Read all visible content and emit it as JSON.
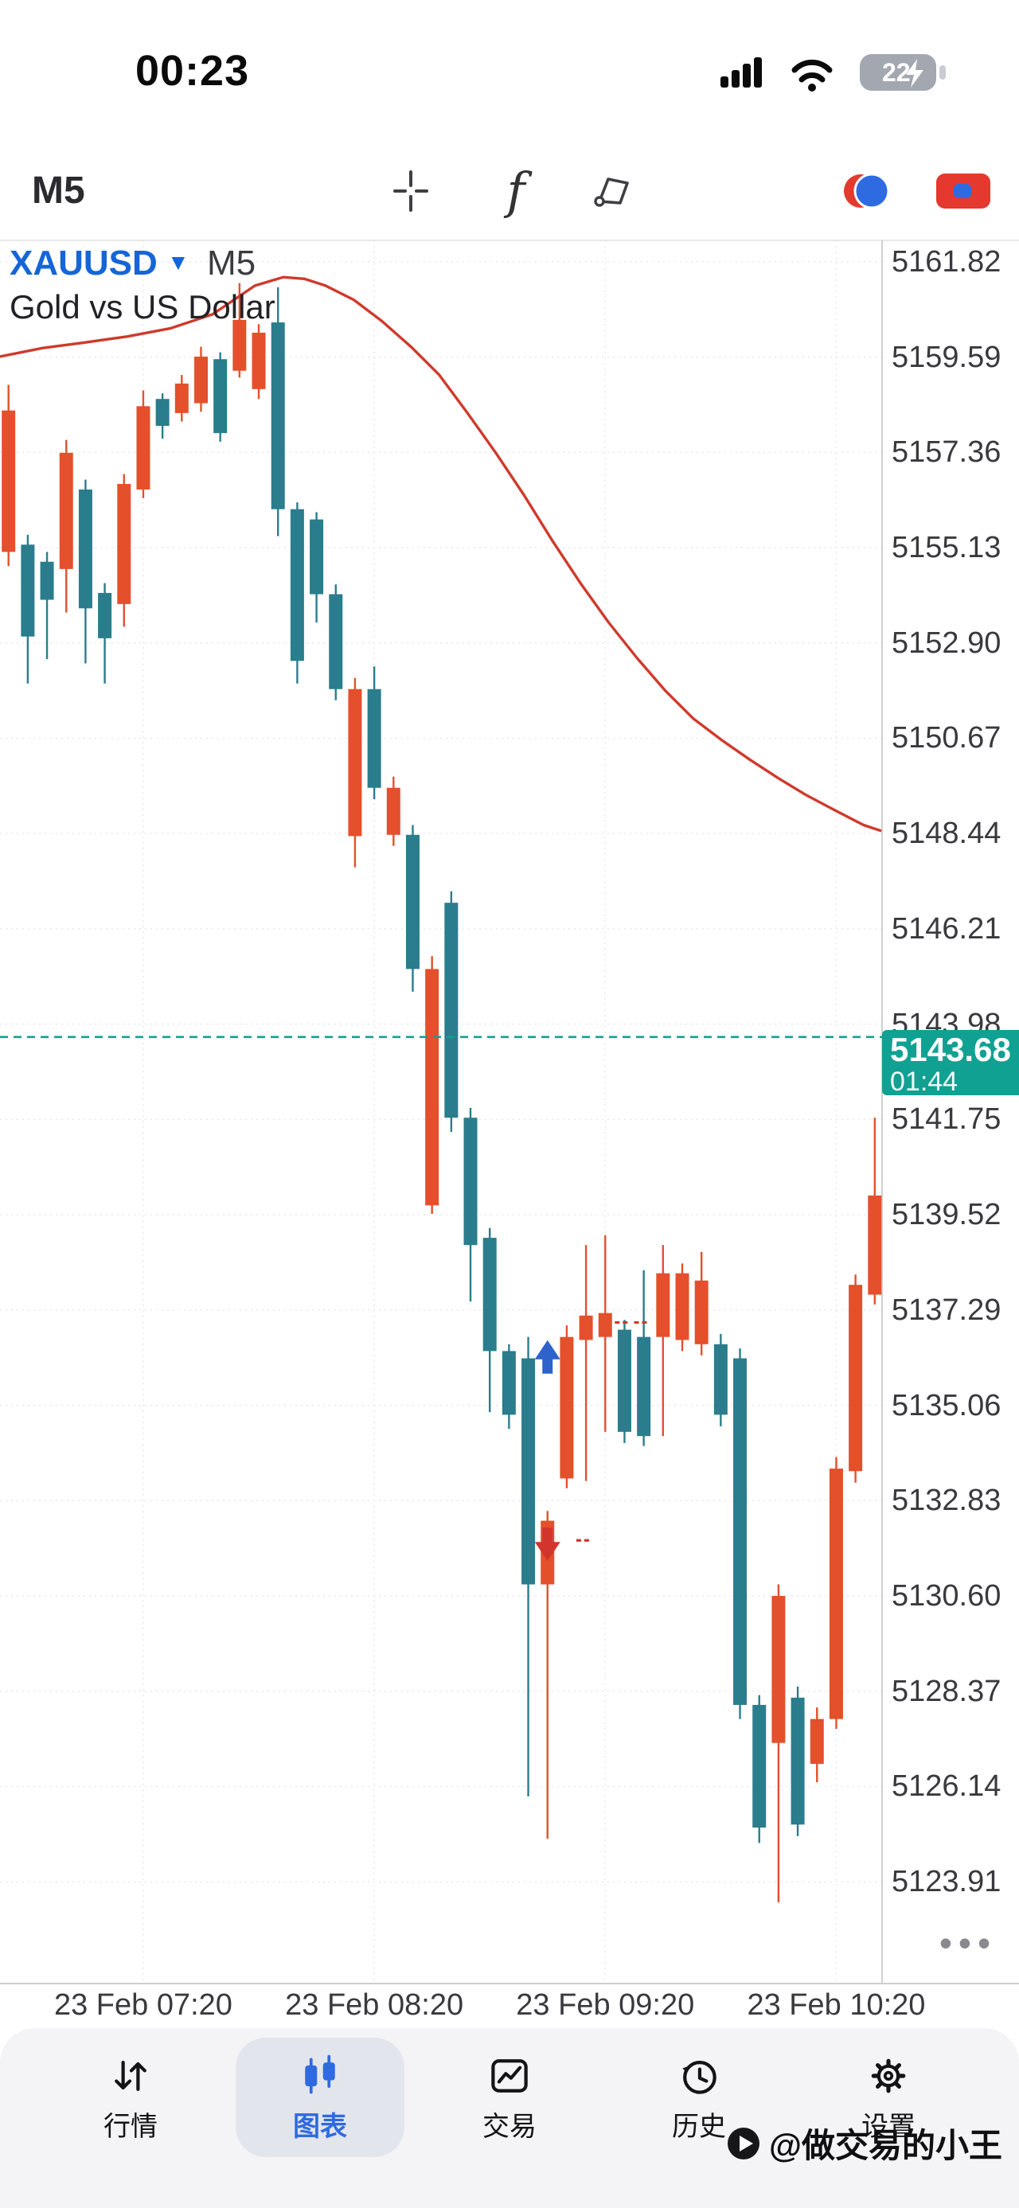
{
  "status_bar": {
    "time": "00:23",
    "battery_level": "22"
  },
  "toolbar": {
    "timeframe": "M5"
  },
  "chart_header": {
    "symbol": "XAUUSD",
    "timeframe": "M5",
    "description": "Gold vs US Dollar"
  },
  "more_indicator": "•••",
  "chart_data": {
    "type": "candlestick",
    "symbol": "XAUUSD",
    "timeframe": "M5",
    "title": "Gold vs US Dollar",
    "colors": {
      "up": "#e4502c",
      "down": "#2a7d8c",
      "accent": "#11a193",
      "ma": "#cf3a2c",
      "grid": "#e9e9e9"
    },
    "y_axis": {
      "min": 5121.53,
      "max": 5162.32,
      "ticks": [
        5161.82,
        5159.59,
        5157.36,
        5155.13,
        5152.9,
        5150.67,
        5148.44,
        5146.21,
        5143.98,
        5141.75,
        5139.52,
        5137.29,
        5135.06,
        5132.83,
        5130.6,
        5128.37,
        5126.14,
        5123.91
      ]
    },
    "x_axis": {
      "labels": [
        {
          "text": "23 Feb 07:20",
          "index": 7
        },
        {
          "text": "23 Feb 08:20",
          "index": 19
        },
        {
          "text": "23 Feb 09:20",
          "index": 31
        },
        {
          "text": "23 Feb 10:20",
          "index": 43
        }
      ]
    },
    "current_price": {
      "value": "5143.68",
      "countdown": "01:44"
    },
    "candles": [
      {
        "t": "06:45",
        "o": 5155.03,
        "h": 5158.94,
        "l": 5154.7,
        "c": 5158.34
      },
      {
        "t": "06:50",
        "o": 5155.2,
        "h": 5155.43,
        "l": 5151.95,
        "c": 5153.05
      },
      {
        "t": "06:55",
        "o": 5154.8,
        "h": 5155.03,
        "l": 5152.52,
        "c": 5153.91
      },
      {
        "t": "07:00",
        "o": 5154.63,
        "h": 5157.65,
        "l": 5153.61,
        "c": 5157.35
      },
      {
        "t": "07:05",
        "o": 5156.49,
        "h": 5156.72,
        "l": 5152.42,
        "c": 5153.71
      },
      {
        "t": "07:10",
        "o": 5154.07,
        "h": 5154.3,
        "l": 5151.95,
        "c": 5153.01
      },
      {
        "t": "07:15",
        "o": 5153.81,
        "h": 5156.85,
        "l": 5153.28,
        "c": 5156.62
      },
      {
        "t": "07:20",
        "o": 5156.49,
        "h": 5158.81,
        "l": 5156.29,
        "c": 5158.44
      },
      {
        "t": "07:25",
        "o": 5158.61,
        "h": 5158.74,
        "l": 5157.68,
        "c": 5157.98
      },
      {
        "t": "07:30",
        "o": 5158.28,
        "h": 5159.17,
        "l": 5158.08,
        "c": 5158.97
      },
      {
        "t": "07:35",
        "o": 5158.51,
        "h": 5159.83,
        "l": 5158.31,
        "c": 5159.6
      },
      {
        "t": "07:40",
        "o": 5159.54,
        "h": 5159.7,
        "l": 5157.61,
        "c": 5157.81
      },
      {
        "t": "07:45",
        "o": 5159.27,
        "h": 5161.32,
        "l": 5159.11,
        "c": 5160.46
      },
      {
        "t": "07:50",
        "o": 5158.84,
        "h": 5160.36,
        "l": 5158.61,
        "c": 5160.16
      },
      {
        "t": "07:55",
        "o": 5160.4,
        "h": 5161.22,
        "l": 5155.4,
        "c": 5156.03
      },
      {
        "t": "08:00",
        "o": 5156.03,
        "h": 5156.19,
        "l": 5151.95,
        "c": 5152.48
      },
      {
        "t": "08:05",
        "o": 5155.79,
        "h": 5155.96,
        "l": 5153.38,
        "c": 5154.04
      },
      {
        "t": "08:10",
        "o": 5154.04,
        "h": 5154.27,
        "l": 5151.56,
        "c": 5151.82
      },
      {
        "t": "08:15",
        "o": 5148.38,
        "h": 5152.08,
        "l": 5147.65,
        "c": 5151.82
      },
      {
        "t": "08:20",
        "o": 5151.82,
        "h": 5152.35,
        "l": 5149.24,
        "c": 5149.51
      },
      {
        "t": "08:25",
        "o": 5148.41,
        "h": 5149.77,
        "l": 5148.15,
        "c": 5149.51
      },
      {
        "t": "08:30",
        "o": 5148.41,
        "h": 5148.64,
        "l": 5144.74,
        "c": 5145.27
      },
      {
        "t": "08:35",
        "o": 5139.74,
        "h": 5145.57,
        "l": 5139.54,
        "c": 5145.27
      },
      {
        "t": "08:40",
        "o": 5146.82,
        "h": 5147.09,
        "l": 5141.46,
        "c": 5141.79
      },
      {
        "t": "08:45",
        "o": 5141.79,
        "h": 5142.02,
        "l": 5137.49,
        "c": 5138.81
      },
      {
        "t": "08:50",
        "o": 5138.98,
        "h": 5139.21,
        "l": 5134.9,
        "c": 5136.33
      },
      {
        "t": "08:55",
        "o": 5136.33,
        "h": 5136.49,
        "l": 5134.51,
        "c": 5134.84
      },
      {
        "t": "09:00",
        "o": 5136.16,
        "h": 5136.66,
        "l": 5125.91,
        "c": 5130.87
      },
      {
        "t": "09:05",
        "o": 5130.87,
        "h": 5132.59,
        "l": 5124.92,
        "c": 5132.36
      },
      {
        "t": "09:10",
        "o": 5133.35,
        "h": 5136.93,
        "l": 5133.12,
        "c": 5136.66
      },
      {
        "t": "09:15",
        "o": 5136.59,
        "h": 5138.81,
        "l": 5133.29,
        "c": 5137.16
      },
      {
        "t": "09:20",
        "o": 5136.66,
        "h": 5139.04,
        "l": 5134.44,
        "c": 5137.22
      },
      {
        "t": "09:25",
        "o": 5136.83,
        "h": 5137.06,
        "l": 5134.18,
        "c": 5134.44
      },
      {
        "t": "09:30",
        "o": 5136.66,
        "h": 5138.22,
        "l": 5134.11,
        "c": 5134.34
      },
      {
        "t": "09:35",
        "o": 5136.66,
        "h": 5138.81,
        "l": 5134.34,
        "c": 5138.15
      },
      {
        "t": "09:40",
        "o": 5136.59,
        "h": 5138.38,
        "l": 5136.33,
        "c": 5138.15
      },
      {
        "t": "09:45",
        "o": 5136.49,
        "h": 5138.65,
        "l": 5136.23,
        "c": 5137.98
      },
      {
        "t": "09:50",
        "o": 5136.49,
        "h": 5136.73,
        "l": 5134.57,
        "c": 5134.84
      },
      {
        "t": "09:55",
        "o": 5136.16,
        "h": 5136.39,
        "l": 5127.72,
        "c": 5128.05
      },
      {
        "t": "10:00",
        "o": 5128.05,
        "h": 5128.28,
        "l": 5124.82,
        "c": 5125.18
      },
      {
        "t": "10:05",
        "o": 5127.16,
        "h": 5130.87,
        "l": 5123.43,
        "c": 5130.6
      },
      {
        "t": "10:10",
        "o": 5128.22,
        "h": 5128.48,
        "l": 5124.98,
        "c": 5125.25
      },
      {
        "t": "10:15",
        "o": 5126.67,
        "h": 5127.99,
        "l": 5126.24,
        "c": 5127.72
      },
      {
        "t": "10:20",
        "o": 5127.72,
        "h": 5133.85,
        "l": 5127.49,
        "c": 5133.58
      },
      {
        "t": "10:25",
        "o": 5133.52,
        "h": 5138.12,
        "l": 5133.25,
        "c": 5137.88
      },
      {
        "t": "10:30",
        "o": 5137.65,
        "h": 5141.79,
        "l": 5137.42,
        "c": 5139.97
      }
    ],
    "ma_line": {
      "color": "#cf3a2c",
      "points": [
        {
          "fx": 0.0,
          "p": 5159.6
        },
        {
          "fx": 0.048,
          "p": 5159.8
        },
        {
          "fx": 0.096,
          "p": 5159.93
        },
        {
          "fx": 0.144,
          "p": 5160.07
        },
        {
          "fx": 0.193,
          "p": 5160.26
        },
        {
          "fx": 0.241,
          "p": 5160.59
        },
        {
          "fx": 0.289,
          "p": 5161.26
        },
        {
          "fx": 0.321,
          "p": 5161.46
        },
        {
          "fx": 0.345,
          "p": 5161.42
        },
        {
          "fx": 0.369,
          "p": 5161.26
        },
        {
          "fx": 0.401,
          "p": 5160.93
        },
        {
          "fx": 0.433,
          "p": 5160.43
        },
        {
          "fx": 0.466,
          "p": 5159.83
        },
        {
          "fx": 0.498,
          "p": 5159.17
        },
        {
          "fx": 0.53,
          "p": 5158.28
        },
        {
          "fx": 0.562,
          "p": 5157.35
        },
        {
          "fx": 0.594,
          "p": 5156.36
        },
        {
          "fx": 0.626,
          "p": 5155.3
        },
        {
          "fx": 0.658,
          "p": 5154.3
        },
        {
          "fx": 0.69,
          "p": 5153.38
        },
        {
          "fx": 0.722,
          "p": 5152.55
        },
        {
          "fx": 0.754,
          "p": 5151.79
        },
        {
          "fx": 0.786,
          "p": 5151.13
        },
        {
          "fx": 0.818,
          "p": 5150.63
        },
        {
          "fx": 0.85,
          "p": 5150.17
        },
        {
          "fx": 0.882,
          "p": 5149.74
        },
        {
          "fx": 0.914,
          "p": 5149.34
        },
        {
          "fx": 0.947,
          "p": 5148.98
        },
        {
          "fx": 0.979,
          "p": 5148.64
        },
        {
          "fx": 0.998,
          "p": 5148.51
        }
      ]
    },
    "trade_markers": [
      {
        "type": "buy-arrow",
        "index": 28,
        "price": 5136.1
      },
      {
        "type": "sell-arrow",
        "index": 28,
        "price": 5131.9
      },
      {
        "type": "dash",
        "index": 29,
        "price": 5131.9
      },
      {
        "type": "dash",
        "index": 31,
        "price": 5137.0
      },
      {
        "type": "dash",
        "index": 32,
        "price": 5137.0
      }
    ]
  },
  "footer_nav": {
    "items": [
      {
        "id": "quotes",
        "label": "行情",
        "active": false
      },
      {
        "id": "charts",
        "label": "图表",
        "active": true
      },
      {
        "id": "trade",
        "label": "交易",
        "active": false
      },
      {
        "id": "history",
        "label": "历史",
        "active": false
      },
      {
        "id": "settings",
        "label": "设置",
        "active": false
      }
    ]
  },
  "watermark": {
    "text": "@做交易的小王"
  }
}
